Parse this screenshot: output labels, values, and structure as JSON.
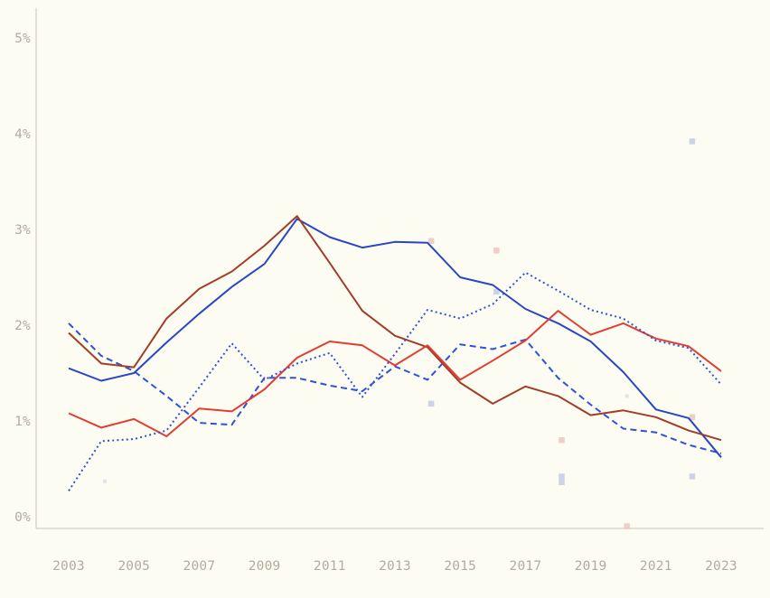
{
  "chart_data": {
    "type": "line",
    "title": "",
    "xlabel": "",
    "ylabel": "",
    "x": [
      2003,
      2004,
      2005,
      2006,
      2007,
      2008,
      2009,
      2010,
      2011,
      2012,
      2013,
      2014,
      2015,
      2016,
      2017,
      2018,
      2019,
      2020,
      2021,
      2022,
      2023
    ],
    "x_tick_labels": [
      "2003",
      "2005",
      "2007",
      "2009",
      "2011",
      "2013",
      "2015",
      "2017",
      "2019",
      "2021",
      "2023"
    ],
    "y_tick_labels": [
      "0%",
      "1%",
      "2%",
      "3%",
      "4%",
      "5%"
    ],
    "ylim": [
      0,
      5
    ],
    "xlim": [
      2003,
      2023
    ],
    "grid": false,
    "legend_position": "none",
    "background_color": "#FCFCF2",
    "axis_color": "#CBC5B8",
    "tick_label_color": "#B5AA9E",
    "series": [
      {
        "name": "blue-dashed",
        "style": "dashed",
        "color": "#3052D4",
        "values": [
          2.02,
          1.68,
          1.52,
          1.26,
          0.98,
          0.96,
          1.45,
          1.45,
          1.37,
          1.31,
          1.57,
          1.43,
          1.8,
          1.75,
          1.85,
          1.45,
          1.17,
          0.92,
          0.88,
          0.75,
          0.66
        ]
      },
      {
        "name": "blue-solid",
        "style": "solid",
        "color": "#2946C7",
        "values": [
          1.55,
          1.42,
          1.5,
          1.82,
          2.12,
          2.4,
          2.64,
          3.11,
          2.92,
          2.81,
          2.87,
          2.86,
          2.5,
          2.42,
          2.17,
          2.02,
          1.83,
          1.51,
          1.12,
          1.03,
          0.62
        ]
      },
      {
        "name": "darkred-solid",
        "style": "solid",
        "color": "#A03E28",
        "values": [
          1.92,
          1.6,
          1.56,
          2.07,
          2.38,
          2.56,
          2.83,
          3.14,
          2.65,
          2.15,
          1.89,
          1.77,
          1.4,
          1.18,
          1.36,
          1.26,
          1.06,
          1.11,
          1.04,
          0.9,
          0.8
        ]
      },
      {
        "name": "red-solid",
        "style": "solid",
        "color": "#E23D33",
        "values": [
          1.08,
          0.93,
          1.02,
          0.84,
          1.13,
          1.1,
          1.33,
          1.66,
          1.83,
          1.79,
          1.58,
          1.79,
          1.43,
          1.63,
          1.84,
          2.15,
          1.9,
          2.02,
          1.86,
          1.78,
          1.52
        ]
      },
      {
        "name": "blue-dotted",
        "style": "dotted",
        "color": "#3052D4",
        "values": [
          0.27,
          0.79,
          0.81,
          0.9,
          1.35,
          1.81,
          1.43,
          1.6,
          1.71,
          1.25,
          1.7,
          2.16,
          2.07,
          2.22,
          2.55,
          2.36,
          2.16,
          2.07,
          1.84,
          1.76,
          1.38
        ]
      }
    ],
    "markers": [
      {
        "name": "lavender-squares",
        "color": "#C5CAE8",
        "points": [
          {
            "x": 2004,
            "y": 0.37,
            "small": true
          },
          {
            "x": 2014,
            "y": 1.18
          },
          {
            "x": 2016,
            "y": 2.35
          },
          {
            "x": 2018,
            "y": 0.42
          },
          {
            "x": 2018,
            "y": 0.36
          },
          {
            "x": 2020,
            "y": 1.26,
            "small": true
          },
          {
            "x": 2022,
            "y": 3.92
          },
          {
            "x": 2022,
            "y": 0.42
          }
        ]
      },
      {
        "name": "pink-squares",
        "color": "#EBC7C0",
        "points": [
          {
            "x": 2014,
            "y": 2.88
          },
          {
            "x": 2016,
            "y": 2.78
          },
          {
            "x": 2018,
            "y": 0.8
          },
          {
            "x": 2020,
            "y": -0.1
          },
          {
            "x": 2022,
            "y": 1.04
          }
        ]
      }
    ]
  }
}
